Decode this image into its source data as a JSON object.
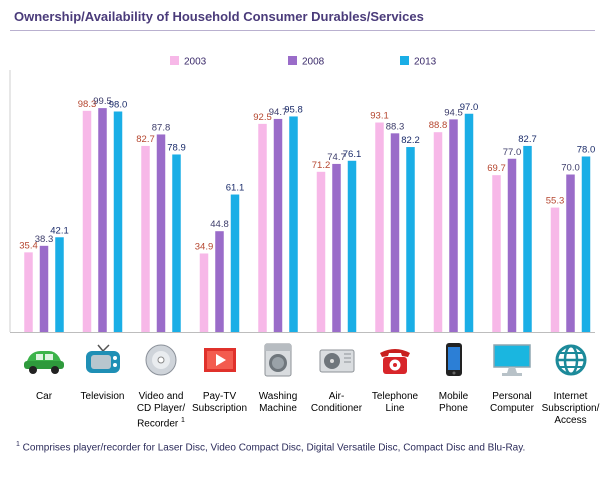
{
  "title": "Ownership/Availability of Household Consumer Durables/Services",
  "footnote": {
    "marker": "1",
    "text": " Comprises player/recorder for Laser Disc, Video Compact Disc, Digital Versatile Disc, Compact Disc and Blu-Ray."
  },
  "colors": {
    "2003": "#f7b8e8",
    "2008": "#9a6cc9",
    "2013": "#1aaee6"
  },
  "chart_data": {
    "type": "bar",
    "title": "Ownership/Availability of Household Consumer Durables/Services",
    "xlabel": "",
    "ylabel": "",
    "ylim": [
      0,
      100
    ],
    "legend_position": "top",
    "categories": [
      "Car",
      "Television",
      "Video and\nCD Player/\nRecorder",
      "Pay-TV\nSubscription",
      "Washing\nMachine",
      "Air-\nConditioner",
      "Telephone\nLine",
      "Mobile\nPhone",
      "Personal\nComputer",
      "Internet\nSubscription/\nAccess"
    ],
    "icons": [
      "car-icon",
      "television-icon",
      "disc-icon",
      "pay-tv-icon",
      "washing-machine-icon",
      "air-conditioner-icon",
      "telephone-icon",
      "mobile-phone-icon",
      "personal-computer-icon",
      "internet-globe-icon"
    ],
    "series": [
      {
        "name": "2003",
        "values": [
          35.4,
          98.3,
          82.7,
          34.9,
          92.5,
          71.2,
          93.1,
          88.8,
          69.7,
          55.3
        ]
      },
      {
        "name": "2008",
        "values": [
          38.3,
          99.5,
          87.8,
          44.8,
          94.7,
          74.7,
          88.3,
          94.5,
          77.0,
          70.0
        ]
      },
      {
        "name": "2013",
        "values": [
          42.1,
          98.0,
          78.9,
          61.1,
          95.8,
          76.1,
          82.2,
          97.0,
          82.7,
          78.0
        ]
      }
    ],
    "label_colors": {
      "2003": "#b5462f",
      "2008": "#3c3c6a",
      "2013": "#1a2b6a"
    }
  }
}
